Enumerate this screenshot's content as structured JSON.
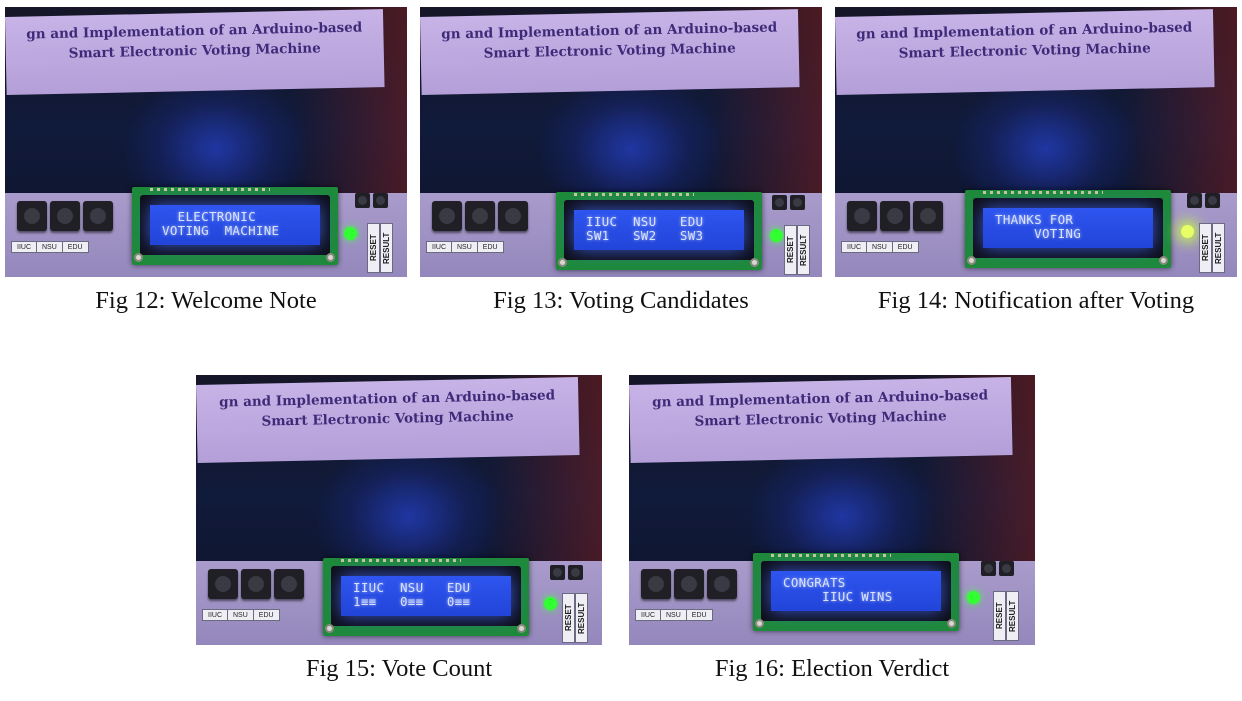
{
  "banner": {
    "line1": "gn and Implementation of an Arduino-based",
    "line2": "Smart Electronic Voting Machine"
  },
  "button_labels": [
    "IIUC",
    "NSU",
    "EDU"
  ],
  "control_labels": [
    "RESET",
    "RESULT"
  ],
  "colors": {
    "lcd": "#2244d8",
    "led": "#32ff32",
    "banner": "#bfa8e0",
    "pcb": "#1e8a3a"
  },
  "figures": [
    {
      "caption": "Fig 12: Welcome Note",
      "lcd_line1": "  ELECTRONIC",
      "lcd_line2": "VOTING  MACHINE",
      "led_state": "normal"
    },
    {
      "caption": "Fig 13: Voting Candidates",
      "lcd_line1": "IIUC  NSU   EDU",
      "lcd_line2": "SW1   SW2   SW3",
      "led_state": "normal"
    },
    {
      "caption": "Fig 14: Notification after Voting",
      "lcd_line1": "THANKS FOR",
      "lcd_line2": "     VOTING",
      "led_state": "bright"
    },
    {
      "caption": "Fig 15: Vote Count",
      "lcd_line1": "IIUC  NSU   EDU",
      "lcd_line2": "1≡≡   0≡≡   0≡≡",
      "led_state": "normal"
    },
    {
      "caption": "Fig 16: Election Verdict",
      "lcd_line1": "CONGRATS",
      "lcd_line2": "     IIUC WINS",
      "led_state": "normal"
    }
  ]
}
